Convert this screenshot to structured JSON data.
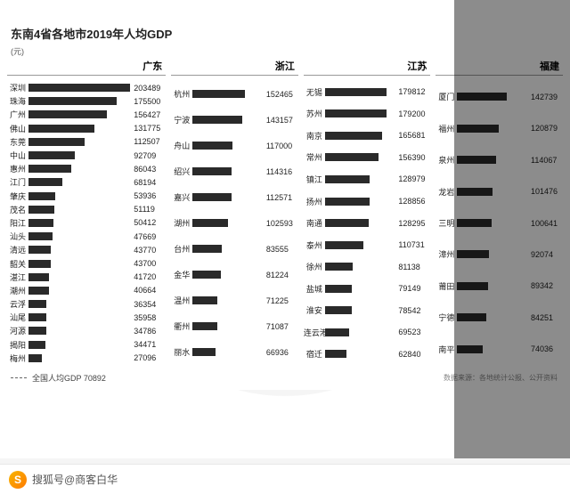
{
  "title": "东南4省各地市2019年人均GDP",
  "unit": "(元)",
  "national_label": "全国人均GDP 70892",
  "source_label": "数据来源：各地统计公报、公开资料",
  "bottom_text": "搜狐号@商客白华",
  "bar_color": "#2a2a2a",
  "background_color": "#ffffff",
  "max_value": 203489,
  "provinces": [
    {
      "name": "广东",
      "key": "gd",
      "cities": [
        {
          "city": "深圳",
          "value": 203489
        },
        {
          "city": "珠海",
          "value": 175500
        },
        {
          "city": "广州",
          "value": 156427
        },
        {
          "city": "佛山",
          "value": 131775
        },
        {
          "city": "东莞",
          "value": 112507
        },
        {
          "city": "中山",
          "value": 92709
        },
        {
          "city": "惠州",
          "value": 86043
        },
        {
          "city": "江门",
          "value": 68194
        },
        {
          "city": "肇庆",
          "value": 53936
        },
        {
          "city": "茂名",
          "value": 51119
        },
        {
          "city": "阳江",
          "value": 50412
        },
        {
          "city": "汕头",
          "value": 47669
        },
        {
          "city": "清远",
          "value": 43770
        },
        {
          "city": "韶关",
          "value": 43700
        },
        {
          "city": "湛江",
          "value": 41720
        },
        {
          "city": "潮州",
          "value": 40664
        },
        {
          "city": "云浮",
          "value": 36354
        },
        {
          "city": "汕尾",
          "value": 35958
        },
        {
          "city": "河源",
          "value": 34786
        },
        {
          "city": "揭阳",
          "value": 34471
        },
        {
          "city": "梅州",
          "value": 27096
        }
      ]
    },
    {
      "name": "浙江",
      "key": "zj",
      "cities": [
        {
          "city": "杭州",
          "value": 152465
        },
        {
          "city": "宁波",
          "value": 143157
        },
        {
          "city": "舟山",
          "value": 117000
        },
        {
          "city": "绍兴",
          "value": 114316
        },
        {
          "city": "嘉兴",
          "value": 112571
        },
        {
          "city": "湖州",
          "value": 102593
        },
        {
          "city": "台州",
          "value": 83555
        },
        {
          "city": "金华",
          "value": 81224
        },
        {
          "city": "温州",
          "value": 71225
        },
        {
          "city": "衢州",
          "value": 71087
        },
        {
          "city": "丽水",
          "value": 66936
        }
      ]
    },
    {
      "name": "江苏",
      "key": "js",
      "cities": [
        {
          "city": "无锡",
          "value": 179812
        },
        {
          "city": "苏州",
          "value": 179200
        },
        {
          "city": "南京",
          "value": 165681
        },
        {
          "city": "常州",
          "value": 156390
        },
        {
          "city": "镇江",
          "value": 128979
        },
        {
          "city": "扬州",
          "value": 128856
        },
        {
          "city": "南通",
          "value": 128295
        },
        {
          "city": "泰州",
          "value": 110731
        },
        {
          "city": "徐州",
          "value": 81138
        },
        {
          "city": "盐城",
          "value": 79149
        },
        {
          "city": "淮安",
          "value": 78542
        },
        {
          "city": "连云港",
          "value": 69523
        },
        {
          "city": "宿迁",
          "value": 62840
        }
      ]
    },
    {
      "name": "福建",
      "key": "fj",
      "cities": [
        {
          "city": "厦门",
          "value": 142739
        },
        {
          "city": "福州",
          "value": 120879
        },
        {
          "city": "泉州",
          "value": 114067
        },
        {
          "city": "龙岩",
          "value": 101476
        },
        {
          "city": "三明",
          "value": 100641
        },
        {
          "city": "漳州",
          "value": 92074
        },
        {
          "city": "莆田",
          "value": 89342
        },
        {
          "city": "宁德",
          "value": 84251
        },
        {
          "city": "南平",
          "value": 74036
        }
      ]
    }
  ]
}
